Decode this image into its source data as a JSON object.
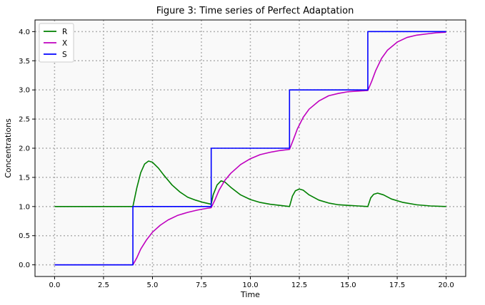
{
  "chart_data": {
    "type": "line",
    "title": "Figure 3: Time series of Perfect Adaptation",
    "xlabel": "Time",
    "ylabel": "Concentrations",
    "xlim": [
      -1.0,
      21.0
    ],
    "ylim": [
      -0.2,
      4.2
    ],
    "xticks": [
      0.0,
      2.5,
      5.0,
      7.5,
      10.0,
      12.5,
      15.0,
      17.5,
      20.0
    ],
    "xtick_labels": [
      "0.0",
      "2.5",
      "5.0",
      "7.5",
      "10.0",
      "12.5",
      "15.0",
      "17.5",
      "20.0"
    ],
    "yticks": [
      0.0,
      0.5,
      1.0,
      1.5,
      2.0,
      2.5,
      3.0,
      3.5,
      4.0
    ],
    "ytick_labels": [
      "0.0",
      "0.5",
      "1.0",
      "1.5",
      "2.0",
      "2.5",
      "3.0",
      "3.5",
      "4.0"
    ],
    "grid": true,
    "grid_style": "dotted",
    "legend_position": "top-left",
    "background": "#f9f9f9",
    "series": [
      {
        "name": "R",
        "color": "#008000",
        "x": [
          0,
          4.0,
          4.2,
          4.4,
          4.6,
          4.8,
          5.0,
          5.3,
          5.6,
          6.0,
          6.4,
          6.8,
          7.2,
          7.6,
          8.0,
          8.1,
          8.3,
          8.5,
          8.7,
          9.0,
          9.5,
          10.0,
          10.5,
          11.0,
          11.5,
          12.0,
          12.15,
          12.3,
          12.5,
          12.7,
          13.0,
          13.5,
          14.0,
          14.5,
          15.0,
          15.5,
          16.0,
          16.15,
          16.3,
          16.5,
          16.8,
          17.2,
          17.8,
          18.5,
          19.2,
          20.0
        ],
        "y": [
          1.0,
          1.0,
          1.32,
          1.58,
          1.73,
          1.78,
          1.76,
          1.66,
          1.53,
          1.37,
          1.25,
          1.16,
          1.11,
          1.07,
          1.04,
          1.2,
          1.37,
          1.44,
          1.42,
          1.33,
          1.2,
          1.12,
          1.07,
          1.04,
          1.02,
          1.0,
          1.18,
          1.27,
          1.3,
          1.28,
          1.2,
          1.11,
          1.06,
          1.03,
          1.02,
          1.01,
          1.0,
          1.15,
          1.21,
          1.23,
          1.2,
          1.13,
          1.07,
          1.03,
          1.01,
          1.0
        ]
      },
      {
        "name": "X",
        "color": "#bf00bf",
        "x": [
          0,
          4.0,
          4.2,
          4.4,
          4.7,
          5.0,
          5.4,
          5.8,
          6.3,
          6.8,
          7.3,
          7.8,
          8.0,
          8.2,
          8.4,
          8.7,
          9.0,
          9.5,
          10.0,
          10.5,
          11.0,
          11.5,
          12.0,
          12.2,
          12.4,
          12.7,
          13.0,
          13.5,
          14.0,
          14.5,
          15.0,
          15.5,
          16.0,
          16.2,
          16.4,
          16.7,
          17.0,
          17.5,
          18.0,
          18.5,
          19.0,
          19.5,
          20.0
        ],
        "y": [
          0.0,
          0.0,
          0.12,
          0.27,
          0.43,
          0.56,
          0.68,
          0.77,
          0.85,
          0.9,
          0.94,
          0.97,
          0.98,
          1.12,
          1.28,
          1.45,
          1.57,
          1.72,
          1.82,
          1.89,
          1.93,
          1.96,
          1.98,
          2.15,
          2.33,
          2.53,
          2.67,
          2.81,
          2.9,
          2.94,
          2.97,
          2.98,
          2.99,
          3.15,
          3.33,
          3.54,
          3.68,
          3.82,
          3.9,
          3.94,
          3.96,
          3.98,
          3.99
        ]
      },
      {
        "name": "S",
        "color": "#0000ff",
        "x": [
          0,
          4.0,
          4.0,
          8.0,
          8.0,
          12.0,
          12.0,
          16.0,
          16.0,
          20.0
        ],
        "y": [
          0.0,
          0.0,
          1.0,
          1.0,
          2.0,
          2.0,
          3.0,
          3.0,
          4.0,
          4.0
        ]
      }
    ]
  }
}
